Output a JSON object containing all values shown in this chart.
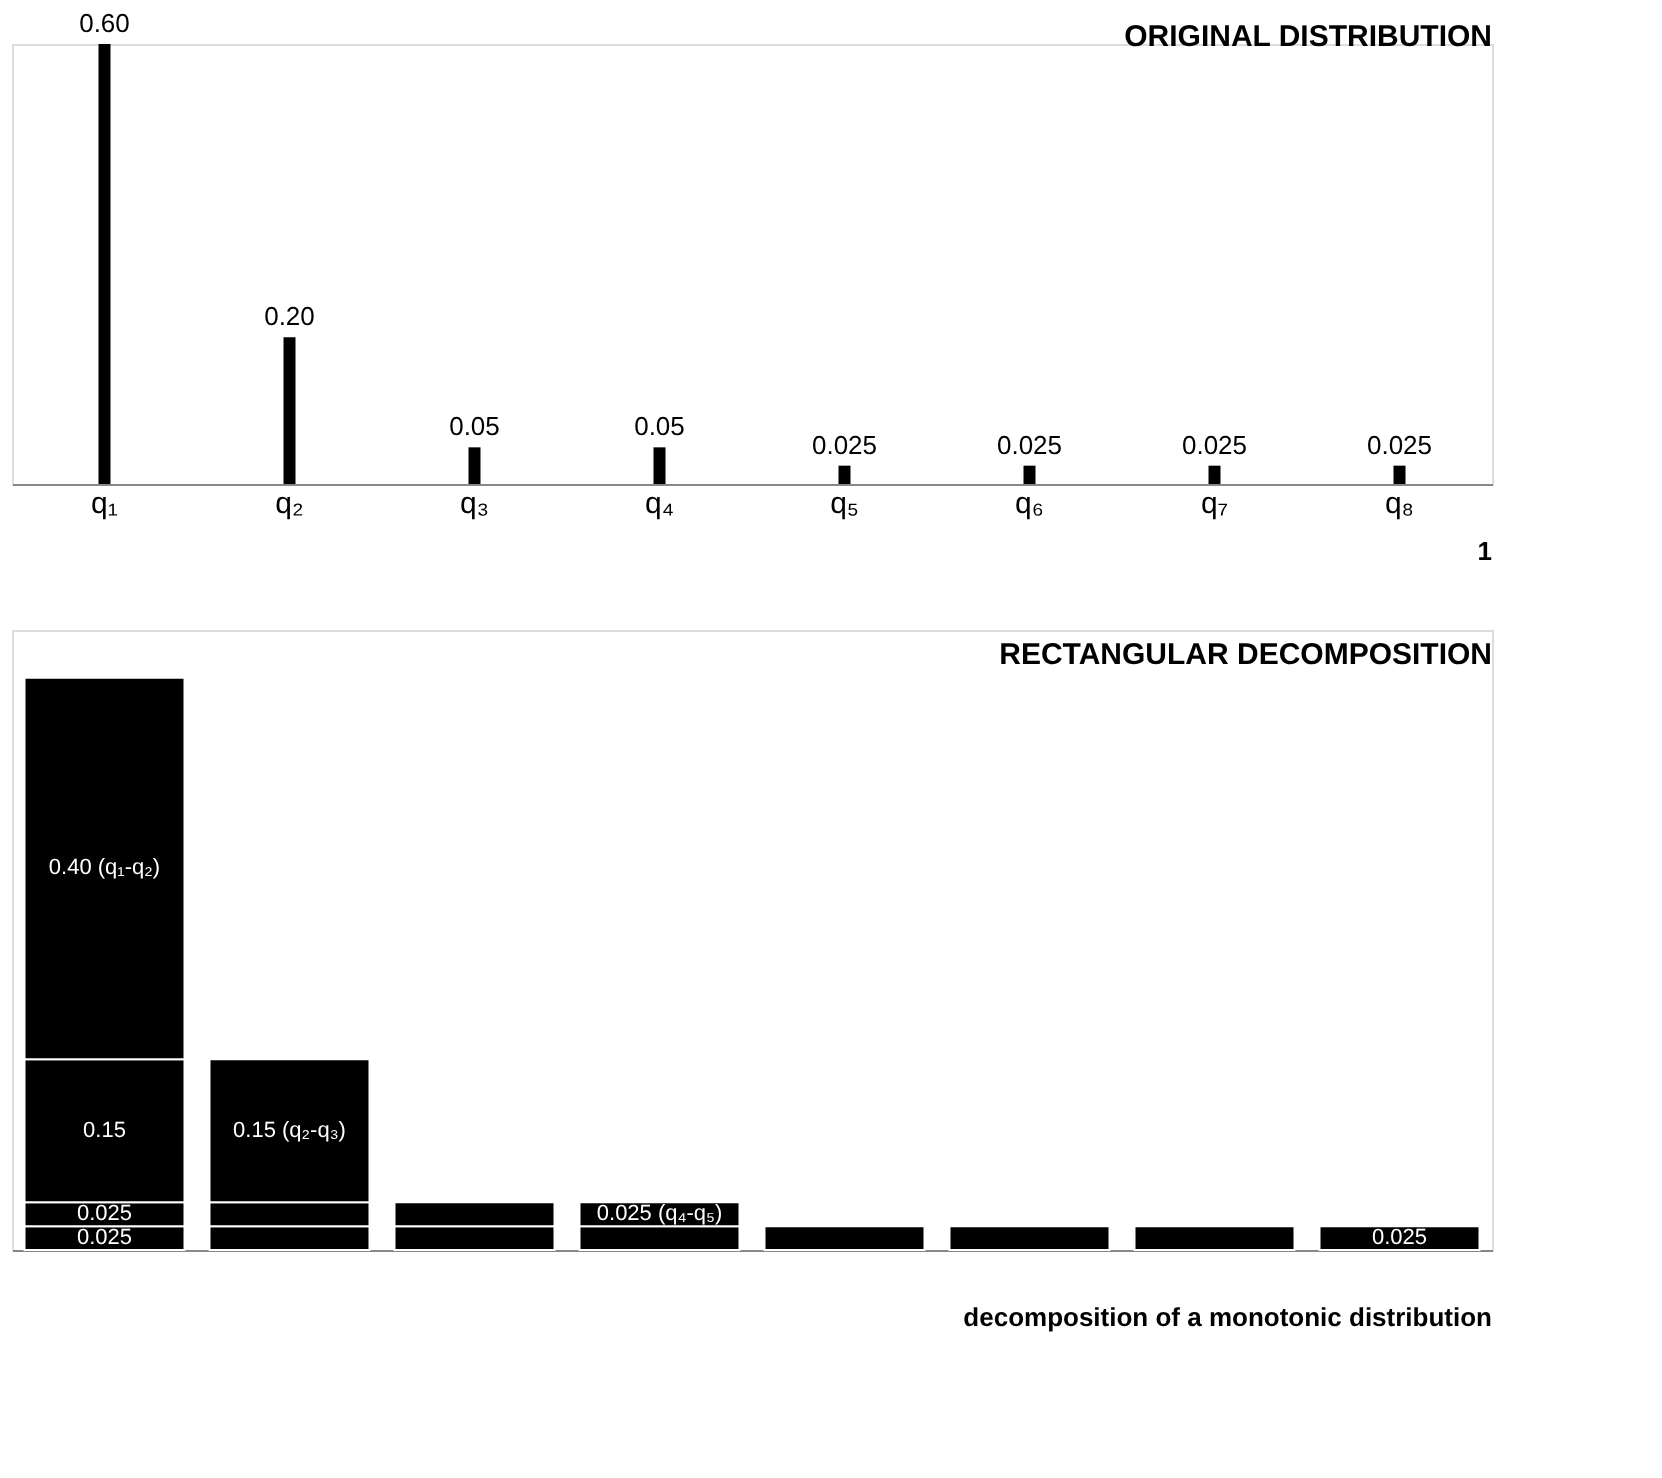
{
  "chart_data": [
    {
      "type": "bar",
      "title": "ORIGINAL DISTRIBUTION",
      "categories": [
        "q₁",
        "q₂",
        "q₃",
        "q₄",
        "q₅",
        "q₆",
        "q₇",
        "q₈"
      ],
      "series": [
        {
          "color": "#000000",
          "values": [
            0.6,
            0.2,
            0.05,
            0.05,
            0.025,
            0.025,
            0.025,
            0.025
          ],
          "value_labels": [
            "0.60",
            "0.20",
            "0.05",
            "0.05",
            "0.025",
            "0.025",
            "0.025",
            "0.025"
          ]
        }
      ],
      "tick_labels": "x",
      "grid": false,
      "legend": false,
      "annotations": [
        "1"
      ]
    },
    {
      "type": "bar",
      "title": "RECTANGULAR DECOMPOSITION",
      "categories": [
        null,
        null,
        null,
        null,
        null,
        null,
        null,
        null
      ],
      "stacked": true,
      "series": [
        {
          "color": "#000000",
          "values": [
            0.025,
            0.025,
            0.025,
            0.025,
            0.025,
            0.025,
            0.025,
            0.025
          ],
          "value_labels": [
            "0.025",
            null,
            null,
            null,
            null,
            null,
            null,
            "0.025"
          ]
        },
        {
          "color": "#000000",
          "values": [
            0.025,
            0.025,
            0.025,
            0.025,
            null,
            null,
            null,
            null
          ],
          "value_labels": [
            "0.025",
            null,
            null,
            "0.025 (q₄-q₅)",
            null,
            null,
            null,
            null
          ]
        },
        {
          "color": "#000000",
          "values": [
            0.15,
            0.15,
            null,
            null,
            null,
            null,
            null,
            null
          ],
          "value_labels": [
            "0.15",
            "0.15 (q₂-q₃)",
            null,
            null,
            null,
            null,
            null,
            null
          ]
        },
        {
          "color": "#000000",
          "values": [
            0.4,
            null,
            null,
            null,
            null,
            null,
            null,
            null
          ],
          "value_labels": [
            "0.40 (q₁-q₂)",
            null,
            null,
            null,
            null,
            null,
            null,
            null
          ]
        }
      ],
      "tick_labels": false,
      "grid": false,
      "legend": false,
      "annotations": [
        "decomposition of a monotonic distribution"
      ]
    }
  ]
}
